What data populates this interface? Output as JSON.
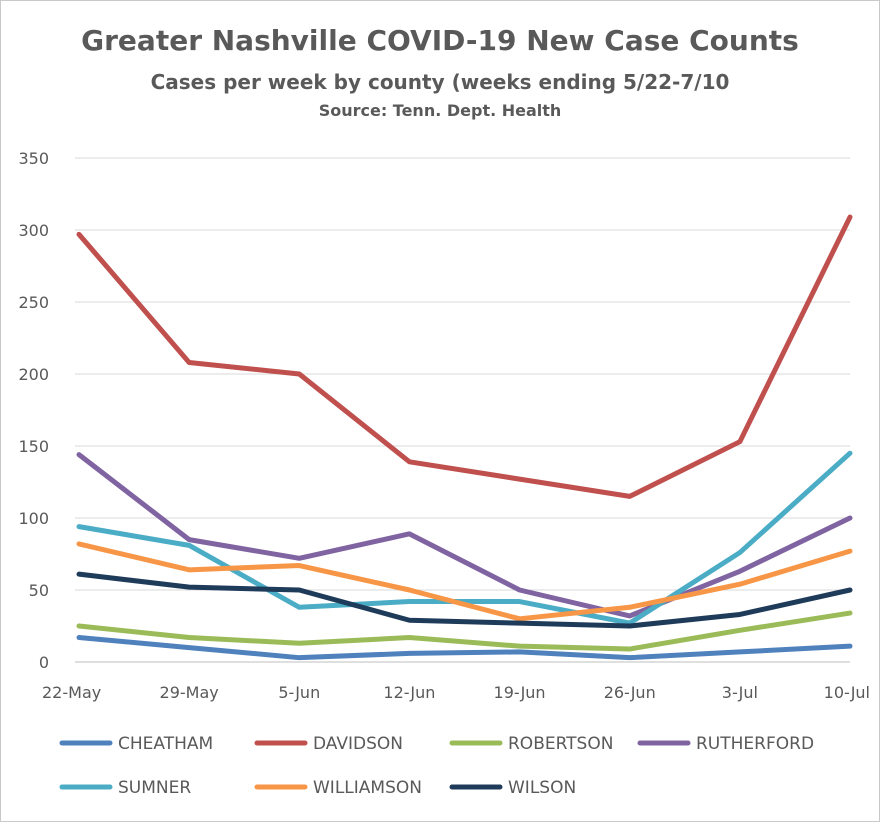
{
  "chart_data": {
    "type": "line",
    "title": "Greater Nashville COVID-19 New Case Counts",
    "subtitle": "Cases per week by county (weeks ending 5/22-7/10",
    "source": "Source: Tenn. Dept. Health",
    "categories": [
      "22-May",
      "29-May",
      "5-Jun",
      "12-Jun",
      "19-Jun",
      "26-Jun",
      "3-Jul",
      "10-Jul"
    ],
    "ylim": [
      0,
      350
    ],
    "yticks": [
      0,
      50,
      100,
      150,
      200,
      250,
      300,
      350
    ],
    "grid": true,
    "legend_position": "bottom",
    "series": [
      {
        "name": "CHEATHAM",
        "color": "#4f81bd",
        "values": [
          17,
          10,
          3,
          6,
          7,
          3,
          7,
          11
        ]
      },
      {
        "name": "DAVIDSON",
        "color": "#c0504d",
        "values": [
          297,
          208,
          200,
          139,
          127,
          115,
          153,
          309
        ]
      },
      {
        "name": "ROBERTSON",
        "color": "#9bbb59",
        "values": [
          25,
          17,
          13,
          17,
          11,
          9,
          22,
          34
        ]
      },
      {
        "name": "RUTHERFORD",
        "color": "#8064a2",
        "values": [
          144,
          85,
          72,
          89,
          50,
          32,
          63,
          100
        ]
      },
      {
        "name": "SUMNER",
        "color": "#4bacc6",
        "values": [
          94,
          81,
          38,
          42,
          42,
          27,
          76,
          145
        ]
      },
      {
        "name": "WILLIAMSON",
        "color": "#f79646",
        "values": [
          82,
          64,
          67,
          50,
          30,
          38,
          54,
          77
        ]
      },
      {
        "name": "WILSON",
        "color": "#1f3b5a",
        "values": [
          61,
          52,
          50,
          29,
          27,
          25,
          33,
          50
        ]
      }
    ]
  }
}
